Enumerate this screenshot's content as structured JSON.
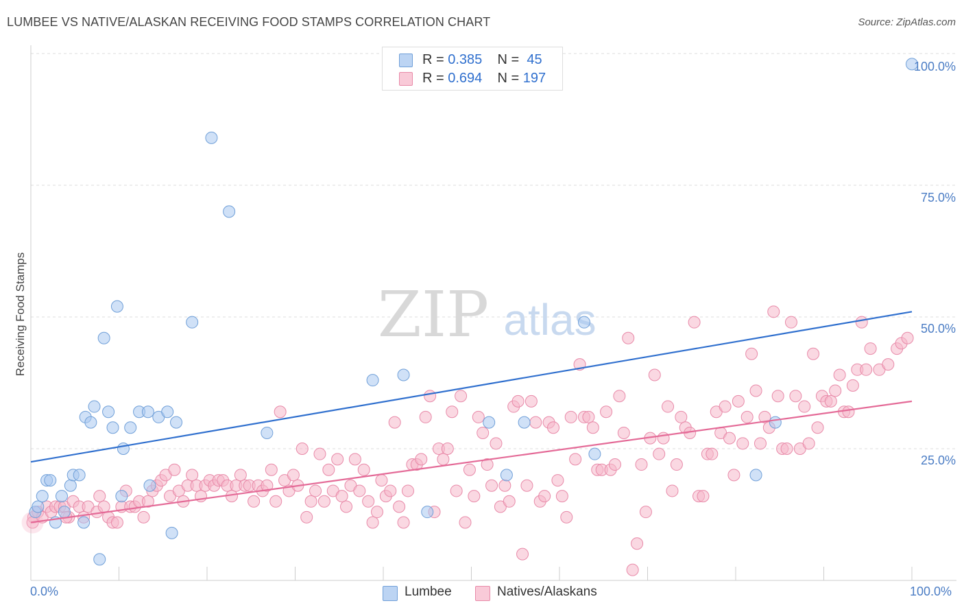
{
  "header": {
    "title": "LUMBEE VS NATIVE/ALASKAN RECEIVING FOOD STAMPS CORRELATION CHART",
    "source": "Source: ZipAtlas.com"
  },
  "watermark": {
    "zip": "ZIP",
    "atlas": "atlas"
  },
  "stats": [
    {
      "r_label": "R =",
      "r_value": "0.385",
      "n_label": "N =",
      "n_value": "45",
      "color": "#a9c8f0"
    },
    {
      "r_label": "R =",
      "r_value": "0.694",
      "n_label": "N =",
      "n_value": "197",
      "color": "#f6b8cb"
    }
  ],
  "legend": [
    {
      "label": "Lumbee",
      "color": "#a9c8f0"
    },
    {
      "label": "Natives/Alaskans",
      "color": "#f6b8cb"
    }
  ],
  "chart_data": {
    "type": "scatter",
    "title": "LUMBEE VS NATIVE/ALASKAN RECEIVING FOOD STAMPS CORRELATION CHART",
    "xlabel": "",
    "ylabel": "Receiving Food Stamps",
    "xlim": [
      0,
      100
    ],
    "ylim": [
      0,
      100
    ],
    "x_tick_labels": [
      "0.0%",
      "100.0%"
    ],
    "y_tick_labels": [
      "25.0%",
      "50.0%",
      "75.0%",
      "100.0%"
    ],
    "y_ticks": [
      25,
      50,
      75,
      100
    ],
    "grid": true,
    "legend_position": "bottom",
    "series": [
      {
        "name": "Lumbee",
        "color": "#a9c8f0",
        "stroke": "#6f9fd8",
        "trend_color": "#2f6fce",
        "trend": [
          [
            0,
            22.5
          ],
          [
            100,
            51.0
          ]
        ],
        "points": [
          [
            0.5,
            13
          ],
          [
            0.8,
            14
          ],
          [
            1.3,
            16
          ],
          [
            1.8,
            19
          ],
          [
            2.2,
            19
          ],
          [
            2.8,
            11
          ],
          [
            3.5,
            16
          ],
          [
            3.8,
            13
          ],
          [
            4.5,
            18
          ],
          [
            4.8,
            20
          ],
          [
            5.5,
            20
          ],
          [
            6.0,
            11
          ],
          [
            6.2,
            31
          ],
          [
            6.8,
            30
          ],
          [
            7.2,
            33
          ],
          [
            7.8,
            4
          ],
          [
            8.3,
            46
          ],
          [
            8.8,
            32
          ],
          [
            9.3,
            29
          ],
          [
            9.8,
            52
          ],
          [
            10.3,
            16
          ],
          [
            10.5,
            25
          ],
          [
            11.3,
            29
          ],
          [
            12.3,
            32
          ],
          [
            13.3,
            32
          ],
          [
            13.5,
            18
          ],
          [
            14.5,
            31
          ],
          [
            15.5,
            32
          ],
          [
            16.0,
            9
          ],
          [
            16.5,
            30
          ],
          [
            18.3,
            49
          ],
          [
            20.5,
            84
          ],
          [
            22.5,
            70
          ],
          [
            26.8,
            28
          ],
          [
            38.8,
            38
          ],
          [
            42.3,
            39
          ],
          [
            45.0,
            13
          ],
          [
            52.0,
            30
          ],
          [
            54.0,
            20
          ],
          [
            56.0,
            30
          ],
          [
            62.8,
            49
          ],
          [
            64.0,
            24
          ],
          [
            82.3,
            20
          ],
          [
            84.5,
            30
          ],
          [
            100.0,
            98
          ]
        ]
      },
      {
        "name": "Natives/Alaskans",
        "color": "#f6b8cb",
        "stroke": "#e889a8",
        "trend_color": "#e46a97",
        "trend": [
          [
            0,
            11.0
          ],
          [
            100,
            34.0
          ]
        ],
        "points": [
          [
            0.3,
            12
          ],
          [
            0.8,
            13
          ],
          [
            1.3,
            12
          ],
          [
            1.8,
            14
          ],
          [
            2.3,
            13
          ],
          [
            2.8,
            14
          ],
          [
            3.3,
            14
          ],
          [
            3.8,
            14
          ],
          [
            4.3,
            12
          ],
          [
            4.8,
            15
          ],
          [
            5.5,
            14
          ],
          [
            6.0,
            12
          ],
          [
            6.5,
            14
          ],
          [
            7.5,
            13
          ],
          [
            7.8,
            16
          ],
          [
            8.3,
            14
          ],
          [
            8.8,
            12
          ],
          [
            9.3,
            11
          ],
          [
            9.8,
            11
          ],
          [
            10.3,
            14
          ],
          [
            10.8,
            17
          ],
          [
            11.3,
            14
          ],
          [
            11.8,
            14
          ],
          [
            12.3,
            15
          ],
          [
            12.8,
            12
          ],
          [
            13.3,
            15
          ],
          [
            13.8,
            17
          ],
          [
            14.3,
            18
          ],
          [
            14.8,
            19
          ],
          [
            15.3,
            20
          ],
          [
            15.8,
            16
          ],
          [
            16.3,
            21
          ],
          [
            16.8,
            17
          ],
          [
            17.3,
            15
          ],
          [
            17.8,
            18
          ],
          [
            18.3,
            20
          ],
          [
            18.8,
            18
          ],
          [
            19.3,
            16
          ],
          [
            19.8,
            18
          ],
          [
            20.3,
            19
          ],
          [
            20.8,
            18
          ],
          [
            21.3,
            19
          ],
          [
            21.8,
            19
          ],
          [
            22.3,
            18
          ],
          [
            22.8,
            16
          ],
          [
            23.3,
            18
          ],
          [
            23.8,
            20
          ],
          [
            24.3,
            18
          ],
          [
            24.8,
            18
          ],
          [
            25.3,
            15
          ],
          [
            25.8,
            18
          ],
          [
            26.3,
            17
          ],
          [
            26.8,
            18
          ],
          [
            27.3,
            21
          ],
          [
            27.8,
            15
          ],
          [
            28.3,
            32
          ],
          [
            28.8,
            19
          ],
          [
            29.3,
            17
          ],
          [
            29.8,
            20
          ],
          [
            30.3,
            18
          ],
          [
            30.8,
            25
          ],
          [
            31.3,
            12
          ],
          [
            31.8,
            15
          ],
          [
            32.3,
            17
          ],
          [
            32.8,
            24
          ],
          [
            33.3,
            15
          ],
          [
            33.8,
            21
          ],
          [
            34.3,
            17
          ],
          [
            34.8,
            23
          ],
          [
            35.3,
            16
          ],
          [
            35.8,
            14
          ],
          [
            36.3,
            18
          ],
          [
            36.8,
            23
          ],
          [
            37.3,
            17
          ],
          [
            37.8,
            21
          ],
          [
            38.3,
            15
          ],
          [
            38.8,
            11
          ],
          [
            39.3,
            13
          ],
          [
            39.8,
            19
          ],
          [
            40.3,
            16
          ],
          [
            40.8,
            17
          ],
          [
            41.3,
            30
          ],
          [
            41.8,
            14
          ],
          [
            42.3,
            11
          ],
          [
            42.8,
            17
          ],
          [
            43.3,
            22
          ],
          [
            43.8,
            22
          ],
          [
            44.3,
            23
          ],
          [
            44.8,
            31
          ],
          [
            45.3,
            35
          ],
          [
            45.8,
            13
          ],
          [
            46.3,
            25
          ],
          [
            46.8,
            23
          ],
          [
            47.3,
            25
          ],
          [
            47.8,
            32
          ],
          [
            48.3,
            17
          ],
          [
            48.8,
            35
          ],
          [
            49.3,
            11
          ],
          [
            49.8,
            21
          ],
          [
            50.3,
            16
          ],
          [
            50.8,
            31
          ],
          [
            51.3,
            28
          ],
          [
            51.8,
            22
          ],
          [
            52.3,
            18
          ],
          [
            52.8,
            26
          ],
          [
            53.3,
            14
          ],
          [
            53.8,
            18
          ],
          [
            54.3,
            15
          ],
          [
            54.8,
            33
          ],
          [
            55.3,
            34
          ],
          [
            55.8,
            5
          ],
          [
            56.3,
            18
          ],
          [
            56.8,
            34
          ],
          [
            57.3,
            30
          ],
          [
            57.8,
            15
          ],
          [
            58.3,
            16
          ],
          [
            58.8,
            30
          ],
          [
            59.3,
            29
          ],
          [
            59.8,
            19
          ],
          [
            60.3,
            16
          ],
          [
            60.8,
            12
          ],
          [
            61.3,
            31
          ],
          [
            61.8,
            23
          ],
          [
            62.3,
            41
          ],
          [
            62.8,
            31
          ],
          [
            63.3,
            31
          ],
          [
            63.8,
            29
          ],
          [
            64.3,
            21
          ],
          [
            64.8,
            21
          ],
          [
            65.3,
            32
          ],
          [
            65.8,
            21
          ],
          [
            66.3,
            22
          ],
          [
            66.8,
            35
          ],
          [
            67.3,
            28
          ],
          [
            67.8,
            46
          ],
          [
            68.3,
            2
          ],
          [
            68.8,
            7
          ],
          [
            69.3,
            22
          ],
          [
            69.8,
            13
          ],
          [
            70.3,
            27
          ],
          [
            70.8,
            39
          ],
          [
            71.3,
            24
          ],
          [
            71.8,
            27
          ],
          [
            72.3,
            33
          ],
          [
            72.8,
            17
          ],
          [
            73.3,
            22
          ],
          [
            73.8,
            31
          ],
          [
            74.3,
            29
          ],
          [
            74.8,
            28
          ],
          [
            75.3,
            49
          ],
          [
            75.8,
            16
          ],
          [
            76.3,
            16
          ],
          [
            76.8,
            24
          ],
          [
            77.3,
            24
          ],
          [
            77.8,
            32
          ],
          [
            78.3,
            28
          ],
          [
            78.8,
            33
          ],
          [
            79.3,
            27
          ],
          [
            79.8,
            20
          ],
          [
            80.3,
            34
          ],
          [
            80.8,
            26
          ],
          [
            81.3,
            31
          ],
          [
            81.8,
            43
          ],
          [
            82.3,
            36
          ],
          [
            82.8,
            26
          ],
          [
            83.3,
            31
          ],
          [
            83.8,
            29
          ],
          [
            84.3,
            51
          ],
          [
            84.8,
            35
          ],
          [
            85.3,
            25
          ],
          [
            85.8,
            25
          ],
          [
            86.3,
            49
          ],
          [
            86.8,
            35
          ],
          [
            87.3,
            25
          ],
          [
            87.8,
            33
          ],
          [
            88.3,
            26
          ],
          [
            88.8,
            43
          ],
          [
            89.3,
            29
          ],
          [
            89.8,
            35
          ],
          [
            90.3,
            34
          ],
          [
            90.8,
            34
          ],
          [
            91.3,
            36
          ],
          [
            91.8,
            39
          ],
          [
            92.3,
            32
          ],
          [
            92.8,
            32
          ],
          [
            93.3,
            37
          ],
          [
            93.8,
            40
          ],
          [
            94.3,
            49
          ],
          [
            94.8,
            40
          ],
          [
            95.3,
            44
          ],
          [
            96.3,
            40
          ],
          [
            97.3,
            41
          ],
          [
            98.3,
            44
          ],
          [
            98.8,
            45
          ],
          [
            99.5,
            46
          ],
          [
            0.2,
            11
          ],
          [
            4.0,
            12
          ]
        ]
      }
    ]
  }
}
